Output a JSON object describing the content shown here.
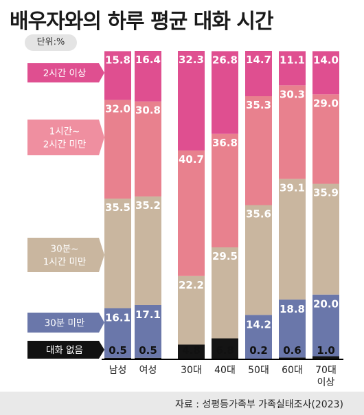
{
  "title": "배우자와의 하루 평균 대화 시간",
  "unit": "단위:%",
  "source": "자료 : 성평등가족부 가족실태조사(2023)",
  "colors": {
    "none": "#141414",
    "under30": "#6a77aa",
    "30to60": "#c9b69f",
    "1to2": "#e8818e",
    "over2": "#df4f90",
    "tab_none": "#111111",
    "tab_under30": "#6a77aa",
    "tab_30to60": "#c9b69f",
    "tab_1to2": "#ef8fa0",
    "tab_over2": "#df4f90"
  },
  "legend": [
    {
      "key": "over2",
      "label": [
        "2시간 이상"
      ]
    },
    {
      "key": "1to2",
      "label": [
        "1시간~",
        "2시간 미만"
      ]
    },
    {
      "key": "30to60",
      "label": [
        "30분~",
        "1시간 미만"
      ]
    },
    {
      "key": "under30",
      "label": [
        "30분 미만"
      ]
    },
    {
      "key": "none",
      "label": [
        "대화 없음"
      ]
    }
  ],
  "chart_data": {
    "type": "bar",
    "stacked": true,
    "categories": [
      [
        "남성"
      ],
      [
        "여성"
      ],
      [
        "30대"
      ],
      [
        "40대"
      ],
      [
        "50대"
      ],
      [
        "60대"
      ],
      [
        "70대",
        "이상"
      ]
    ],
    "series": [
      {
        "name": "대화 없음",
        "key": "none",
        "values": [
          0.5,
          0.5,
          4.8,
          6.8,
          0.2,
          0.6,
          1.0
        ],
        "labels": [
          "0.5",
          "0.5",
          "4.8",
          "6.8",
          "0.2",
          "0.6",
          "1.0"
        ]
      },
      {
        "name": "30분 미만",
        "key": "under30",
        "values": [
          16.1,
          17.1,
          0,
          0,
          14.2,
          18.8,
          20.0
        ],
        "labels": [
          "16.1",
          "17.1",
          "",
          "",
          "14.2",
          "18.8",
          "20.0"
        ]
      },
      {
        "name": "30분~1시간 미만",
        "key": "30to60",
        "values": [
          35.5,
          35.2,
          22.2,
          29.5,
          35.6,
          39.1,
          35.9
        ],
        "labels": [
          "35.5",
          "35.2",
          "22.2",
          "29.5",
          "35.6",
          "39.1",
          "35.9"
        ]
      },
      {
        "name": "1시간~2시간 미만",
        "key": "1to2",
        "values": [
          32.0,
          30.8,
          40.7,
          36.8,
          35.3,
          30.3,
          29.0
        ],
        "labels": [
          "32.0",
          "30.8",
          "40.7",
          "36.8",
          "35.3",
          "30.3",
          "29.0"
        ]
      },
      {
        "name": "2시간 이상",
        "key": "over2",
        "values": [
          15.8,
          16.4,
          32.3,
          26.8,
          14.7,
          11.1,
          14.0
        ],
        "labels": [
          "15.8",
          "16.4",
          "32.3",
          "26.8",
          "14.7",
          "11.1",
          "14.0"
        ]
      }
    ],
    "ylim": [
      0,
      100
    ]
  }
}
